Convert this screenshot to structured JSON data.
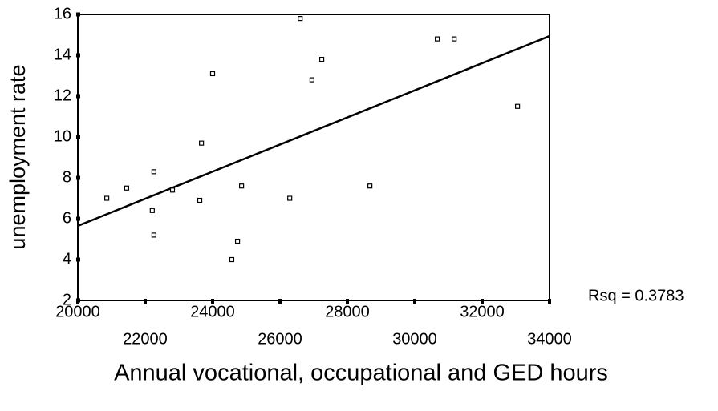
{
  "chart_data": {
    "type": "scatter",
    "x_label": "Annual vocational, occupational and GED hours",
    "y_label": "unemployment rate",
    "annotation": "Rsq = 0.3783",
    "x": [
      20860,
      21450,
      22260,
      22210,
      22260,
      22810,
      23620,
      23670,
      24000,
      24570,
      24740,
      24860,
      26290,
      26600,
      26950,
      27240,
      28670,
      30670,
      31170,
      33050
    ],
    "values": [
      7.0,
      7.5,
      8.3,
      6.4,
      5.2,
      7.4,
      6.9,
      9.7,
      13.1,
      4.0,
      4.9,
      7.6,
      7.0,
      15.8,
      12.8,
      13.8,
      7.6,
      14.8,
      14.8,
      11.5
    ],
    "fit_line": {
      "x": [
        20000,
        34000
      ],
      "y": [
        5.65,
        14.94
      ]
    },
    "color": "#000000",
    "xlim": [
      20000,
      34000
    ],
    "xticks": [
      20000,
      22000,
      24000,
      26000,
      28000,
      30000,
      32000,
      34000
    ],
    "ylim": [
      2,
      16
    ],
    "yticks": [
      2,
      4,
      6,
      8,
      10,
      12,
      14,
      16
    ]
  }
}
